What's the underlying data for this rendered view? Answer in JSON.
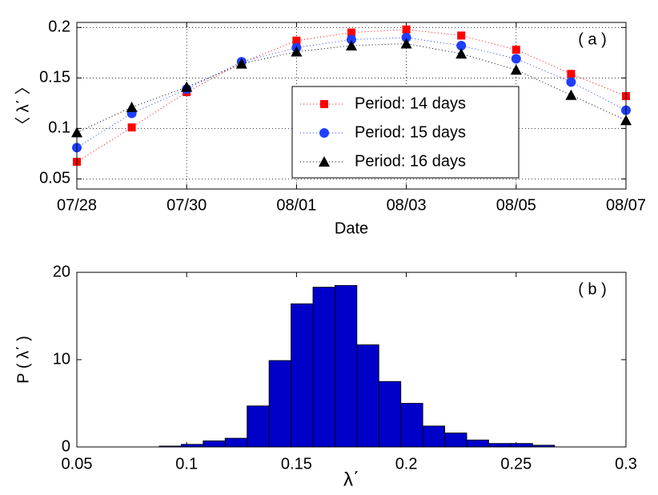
{
  "chart_data": [
    {
      "type": "line",
      "annotation": "( a )",
      "xlabel": "Date",
      "ylabel": "〈 λ΄ 〉",
      "categories": [
        "07/28",
        null,
        "07/30",
        null,
        "08/01",
        null,
        "08/03",
        null,
        "08/05",
        null,
        "08/07"
      ],
      "series": [
        {
          "name": "Period: 14 days",
          "color": "#ff0000",
          "marker": "square",
          "values": [
            0.067,
            0.101,
            0.136,
            0.165,
            0.187,
            0.195,
            0.198,
            0.192,
            0.178,
            0.154,
            0.132
          ]
        },
        {
          "name": "Period: 15 days",
          "color": "#1f3fff",
          "marker": "circle",
          "values": [
            0.081,
            0.115,
            0.139,
            0.166,
            0.18,
            0.188,
            0.19,
            0.182,
            0.169,
            0.146,
            0.118
          ]
        },
        {
          "name": "Period: 16 days",
          "color": "#000000",
          "marker": "triangle",
          "values": [
            0.096,
            0.121,
            0.141,
            0.164,
            0.176,
            0.182,
            0.184,
            0.174,
            0.158,
            0.133,
            0.108
          ]
        }
      ],
      "ylim": [
        0.04,
        0.205
      ],
      "yticks": [
        0.05,
        0.1,
        0.15,
        0.2
      ],
      "grid": true,
      "legend": "lower right"
    },
    {
      "type": "histogram",
      "annotation": "( b )",
      "xlabel": "λ΄",
      "ylabel": "P ( λ΄ )",
      "bins": [
        0.0875,
        0.0975,
        0.1075,
        0.1175,
        0.1275,
        0.1375,
        0.1475,
        0.1575,
        0.1675,
        0.1775,
        0.1875,
        0.1975,
        0.2075,
        0.2175,
        0.2275,
        0.2375,
        0.2475,
        0.2575,
        0.2675
      ],
      "values": [
        0.1,
        0.3,
        0.7,
        1.0,
        4.7,
        9.9,
        16.4,
        18.3,
        18.5,
        11.7,
        7.5,
        5.0,
        2.4,
        1.6,
        0.8,
        0.4,
        0.4,
        0.2
      ],
      "color": "#0000c8",
      "xlim": [
        0.05,
        0.3
      ],
      "xticks": [
        0.05,
        0.1,
        0.15,
        0.2,
        0.25,
        0.3
      ],
      "ylim": [
        0,
        20
      ],
      "yticks": [
        0,
        10,
        20
      ],
      "grid": false
    }
  ]
}
